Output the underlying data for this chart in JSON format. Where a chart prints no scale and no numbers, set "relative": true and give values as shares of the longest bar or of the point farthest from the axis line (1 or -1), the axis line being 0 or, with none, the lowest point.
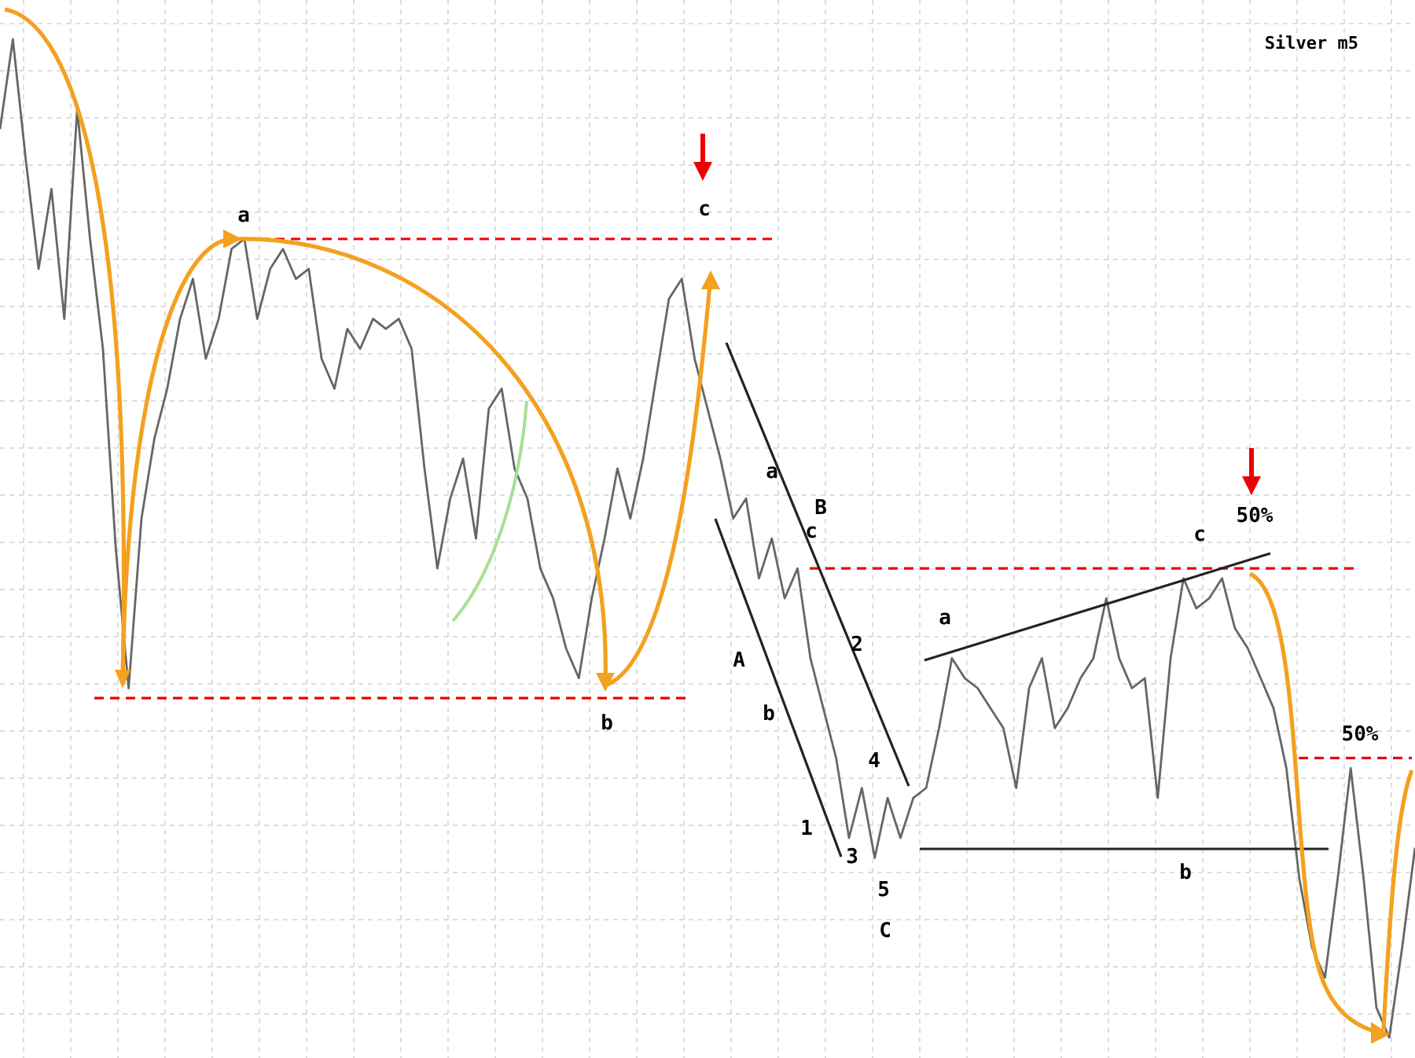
{
  "chart_data": {
    "type": "line",
    "title": "Silver m5",
    "relative": true,
    "grid": true,
    "marker": "none",
    "categories": [
      null,
      null,
      null,
      null,
      null,
      null,
      null,
      null,
      null,
      null,
      null,
      null,
      null,
      null,
      null,
      null,
      null,
      null,
      null,
      null,
      null,
      null,
      null,
      null,
      null,
      null,
      null,
      null,
      null,
      null,
      null,
      null,
      null,
      null,
      null,
      null,
      null,
      null,
      null,
      null,
      null,
      null,
      null,
      null,
      null,
      null,
      null,
      null,
      null,
      null,
      null,
      null,
      null,
      null,
      null,
      null,
      null,
      null,
      null,
      null,
      null,
      null,
      null,
      null,
      null,
      null,
      null,
      null,
      null,
      null,
      null,
      null,
      null,
      null,
      null,
      null,
      null,
      null,
      null,
      null,
      null,
      null,
      null,
      null,
      null,
      null,
      null,
      null,
      null,
      null,
      null,
      null,
      null,
      null,
      null,
      null,
      null,
      null,
      null,
      null,
      null,
      null,
      null,
      null,
      null,
      null,
      null,
      null,
      null,
      null,
      null
    ],
    "series": [
      {
        "color": "#666666",
        "values": [
          0.91,
          1.0,
          0.88,
          0.77,
          0.85,
          0.72,
          0.93,
          0.8,
          0.69,
          0.49,
          0.35,
          0.52,
          0.6,
          0.65,
          0.72,
          0.76,
          0.68,
          0.72,
          0.79,
          0.8,
          0.72,
          0.77,
          0.79,
          0.76,
          0.77,
          0.68,
          0.65,
          0.71,
          0.69,
          0.72,
          0.71,
          0.72,
          0.69,
          0.57,
          0.47,
          0.54,
          0.58,
          0.5,
          0.63,
          0.65,
          0.57,
          0.54,
          0.47,
          0.44,
          0.39,
          0.36,
          0.44,
          0.5,
          0.57,
          0.52,
          0.58,
          0.66,
          0.74,
          0.76,
          0.68,
          0.63,
          0.58,
          0.52,
          0.54,
          0.46,
          0.5,
          0.44,
          0.47,
          0.38,
          0.33,
          0.28,
          0.2,
          0.25,
          0.18,
          0.24,
          0.2,
          0.24,
          0.25,
          0.31,
          0.38,
          0.36,
          0.35,
          0.33,
          0.31,
          0.25,
          0.35,
          0.38,
          0.31,
          0.33,
          0.36,
          0.38,
          0.44,
          0.38,
          0.35,
          0.36,
          0.24,
          0.38,
          0.46,
          0.43,
          0.44,
          0.46,
          0.41,
          0.39,
          0.36,
          0.33,
          0.27,
          0.16,
          0.09,
          0.06,
          0.16,
          0.27,
          0.16,
          0.03,
          0.0,
          0.09,
          0.19
        ]
      }
    ],
    "ref_lines": [
      {
        "axis": "y",
        "value": 0.34,
        "color": "#ee0000",
        "line_style": "dashed"
      },
      {
        "axis": "y",
        "value": 0.8,
        "color": "#ee0000",
        "line_style": "dashed"
      },
      {
        "axis": "y",
        "value": 0.47,
        "color": "#ee0000",
        "line_style": "dashed"
      },
      {
        "axis": "y",
        "value": 0.28,
        "color": "#ee0000",
        "line_style": "dashed"
      }
    ],
    "annotations": [
      "a",
      "c",
      "a",
      "B",
      "c",
      "A",
      "b",
      "2",
      "4",
      "1",
      "3",
      "5",
      "C",
      "b",
      "a",
      "c",
      "50%",
      "50%",
      "b"
    ]
  }
}
